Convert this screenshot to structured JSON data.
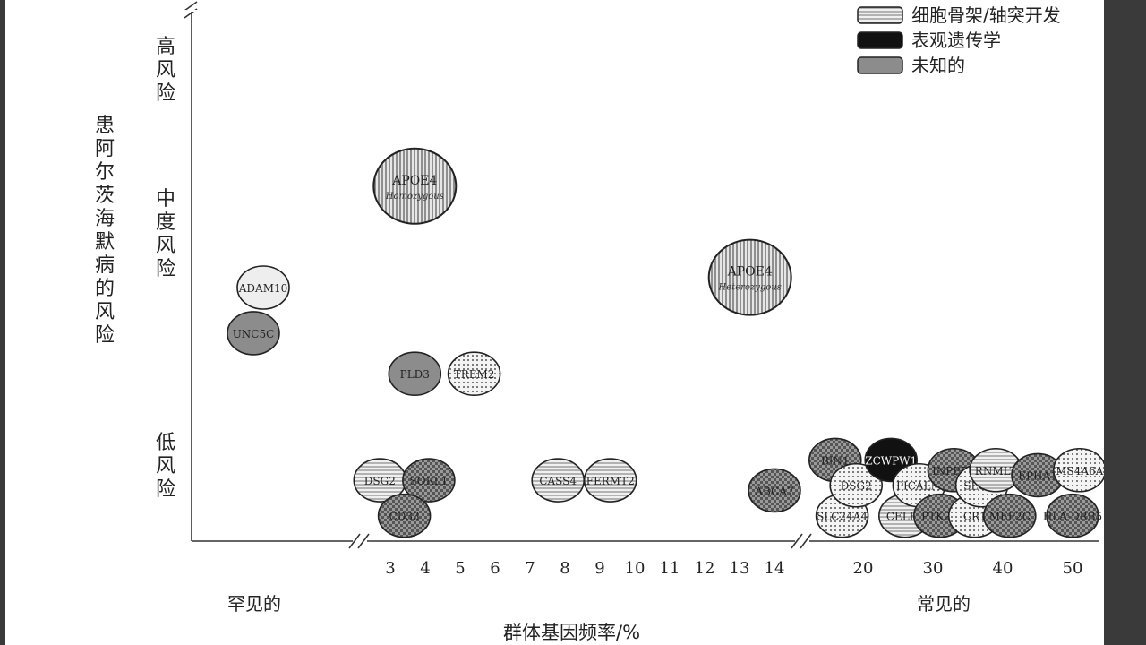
{
  "chart_data": {
    "type": "scatter",
    "xlabel": "群体基因频率/%",
    "ylabel": "患阿尔茨海默病的风险",
    "y_levels": [
      "高风险",
      "中度风险",
      "低风险"
    ],
    "x_groups": [
      "罕见的",
      "常见的"
    ],
    "x_ticks": [
      "3",
      "4",
      "5",
      "6",
      "7",
      "8",
      "9",
      "10",
      "11",
      "12",
      "13",
      "14",
      "20",
      "30",
      "40",
      "50"
    ],
    "legend": [
      {
        "label": "细胞骨架/轴突开发",
        "pattern": "hstripes"
      },
      {
        "label": "表观遗传学",
        "pattern": "solid-black"
      },
      {
        "label": "未知的",
        "pattern": "gray"
      }
    ],
    "points": [
      {
        "label": "APOE4",
        "sublabel": "Homozygous",
        "x": 3.7,
        "y": 0.7,
        "pattern": "vstripes",
        "size": "large"
      },
      {
        "label": "APOE4",
        "sublabel": "Heterozygous",
        "x": 13.3,
        "y": 0.52,
        "pattern": "vstripes",
        "size": "large"
      },
      {
        "label": "ADAM10",
        "x": 0.6,
        "y": 0.5,
        "pattern": "light"
      },
      {
        "label": "UNC5C",
        "x": 0.5,
        "y": 0.41,
        "pattern": "gray"
      },
      {
        "label": "PLD3",
        "x": 3.7,
        "y": 0.33,
        "pattern": "gray"
      },
      {
        "label": "TREM2",
        "x": 5.4,
        "y": 0.33,
        "pattern": "dots"
      },
      {
        "label": "DSG2",
        "x": 2.7,
        "y": 0.12,
        "pattern": "hstripes"
      },
      {
        "label": "SORL1",
        "x": 4.1,
        "y": 0.12,
        "pattern": "check"
      },
      {
        "label": "CD33",
        "x": 3.4,
        "y": 0.05,
        "pattern": "check"
      },
      {
        "label": "CASS4",
        "x": 7.8,
        "y": 0.12,
        "pattern": "hstripes"
      },
      {
        "label": "FERMT2",
        "x": 9.3,
        "y": 0.12,
        "pattern": "hstripes"
      },
      {
        "label": "BIN1",
        "x": 16,
        "y": 0.16,
        "pattern": "check"
      },
      {
        "label": "ABCA7",
        "x": 14,
        "y": 0.1,
        "pattern": "check"
      },
      {
        "label": "SLC24A4",
        "x": 17,
        "y": 0.05,
        "pattern": "dots"
      },
      {
        "label": "DSG2",
        "x": 19,
        "y": 0.11,
        "pattern": "dots"
      },
      {
        "label": "ZCWPW1",
        "x": 24,
        "y": 0.16,
        "pattern": "solid-black"
      },
      {
        "label": "CELF1",
        "x": 26,
        "y": 0.05,
        "pattern": "hstripes"
      },
      {
        "label": "PICALM",
        "x": 28,
        "y": 0.11,
        "pattern": "dots"
      },
      {
        "label": "PTK2B",
        "x": 31,
        "y": 0.05,
        "pattern": "check"
      },
      {
        "label": "INPP5D",
        "x": 33,
        "y": 0.14,
        "pattern": "check"
      },
      {
        "label": "CR1",
        "x": 36,
        "y": 0.05,
        "pattern": "dots"
      },
      {
        "label": "SLC24",
        "x": 37,
        "y": 0.11,
        "pattern": "dots"
      },
      {
        "label": "RNMLT",
        "x": 39,
        "y": 0.14,
        "pattern": "hstripes"
      },
      {
        "label": "MEF2C",
        "x": 41,
        "y": 0.05,
        "pattern": "check"
      },
      {
        "label": "EPHA1",
        "x": 45,
        "y": 0.13,
        "pattern": "check"
      },
      {
        "label": "MS4A6A",
        "x": 51,
        "y": 0.14,
        "pattern": "dots"
      },
      {
        "label": "HLA-DRB5",
        "x": 50,
        "y": 0.05,
        "pattern": "check"
      }
    ]
  }
}
